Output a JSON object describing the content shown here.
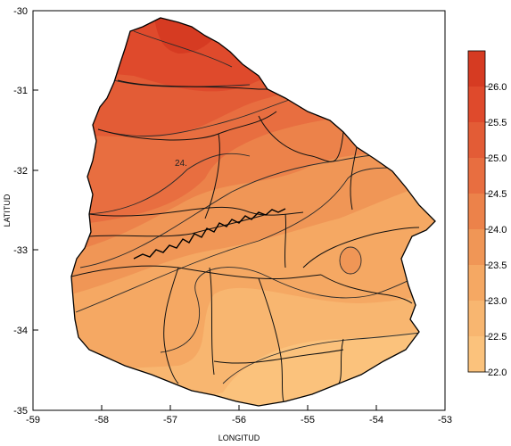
{
  "map": {
    "x_axis_label": "LONGITUD",
    "y_axis_label": "LATITUD",
    "x_ticks": [
      "-59",
      "-58",
      "-57",
      "-56",
      "-55",
      "-54",
      "-53"
    ],
    "y_ticks": [
      "-30",
      "-31",
      "-32",
      "-33",
      "-34",
      "-35"
    ],
    "contour_label": "24.",
    "colors": {
      "c26": "#d63b22",
      "c255": "#df4a2c",
      "c25": "#e35c36",
      "c245": "#e86e40",
      "c24": "#ec824a",
      "c235": "#f09656",
      "c23": "#f5a863",
      "c225": "#f8b670",
      "c22": "#fbc27c"
    }
  },
  "legend": {
    "labels": [
      "26.0",
      "25.5",
      "25.0",
      "24.5",
      "24.0",
      "23.5",
      "23.0",
      "22.5",
      "22.0"
    ]
  },
  "chart_data": {
    "type": "heatmap",
    "title": "",
    "xlabel": "LONGITUD",
    "ylabel": "LATITUD",
    "xlim": [
      -59,
      -53
    ],
    "ylim": [
      -35,
      -30
    ],
    "colorbar": {
      "levels": [
        22.0,
        22.5,
        23.0,
        23.5,
        24.0,
        24.5,
        25.0,
        25.5,
        26.0
      ],
      "colors": [
        "#fbc27c",
        "#f8b670",
        "#f5a863",
        "#f09656",
        "#ec824a",
        "#e86e40",
        "#e35c36",
        "#df4a2c",
        "#d63b22"
      ]
    },
    "contour_labels": [
      "24."
    ]
  }
}
